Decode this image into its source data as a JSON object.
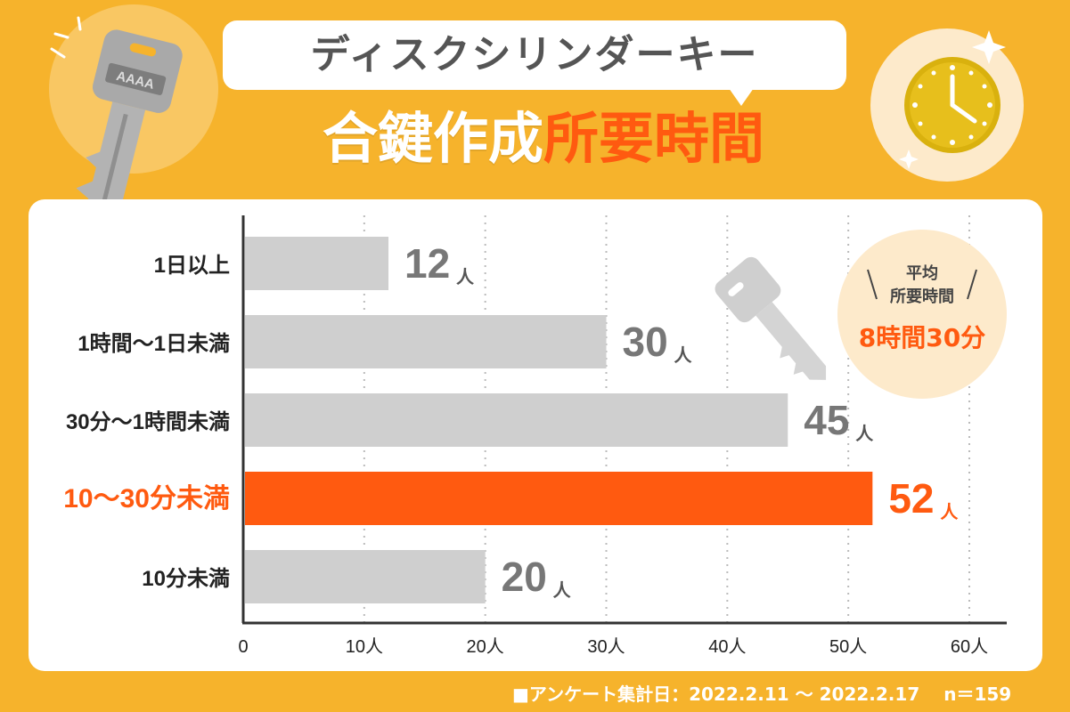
{
  "header": {
    "subtitle": "ディスクシリンダーキー",
    "title_white": "合鍵作成",
    "title_orange": "所要時間",
    "key_label": "AAAA"
  },
  "average": {
    "line1": "平均",
    "line2": "所要時間",
    "value": "8時間30分"
  },
  "footer": "■アンケート集計日：2022.2.11 〜 2022.2.17　 n＝159",
  "colors": {
    "background": "#f6b32c",
    "bar": "#cfcfcf",
    "highlight": "#ff5a10",
    "card": "#ffffff"
  },
  "chart_data": {
    "type": "bar",
    "orientation": "horizontal",
    "categories": [
      "1日以上",
      "1時間〜1日未満",
      "30分〜1時間未満",
      "10〜30分未満",
      "10分未満"
    ],
    "values": [
      12,
      30,
      45,
      52,
      20
    ],
    "value_suffix": "人",
    "highlight_index": 3,
    "xlim": [
      0,
      60
    ],
    "xticks": [
      "0",
      "10人",
      "20人",
      "30人",
      "40人",
      "50人",
      "60人"
    ],
    "grid": true
  }
}
